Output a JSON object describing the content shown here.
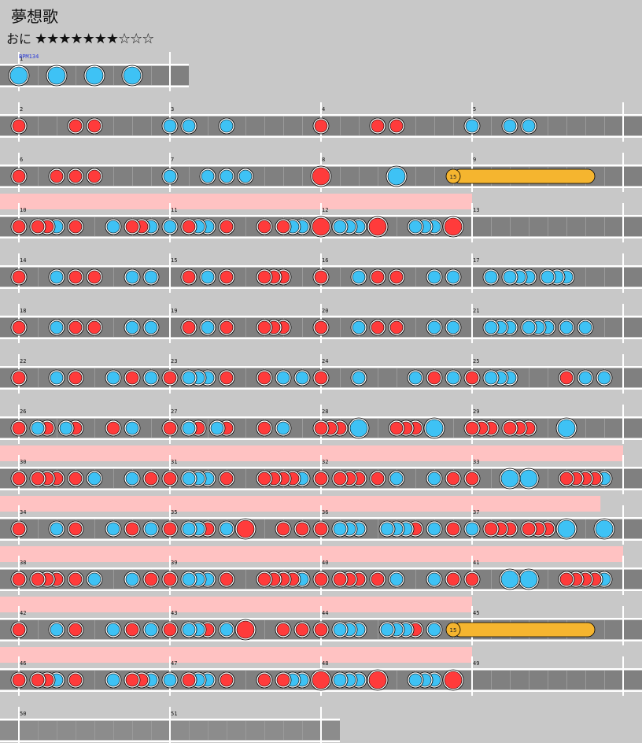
{
  "title": "夢想歌",
  "difficulty": {
    "label": "おに",
    "stars": "★★★★★★★☆☆☆"
  },
  "bpm": "BPM134",
  "colors": {
    "don": "#ff3b3b",
    "ka": "#3ec2f5",
    "drumroll": "#f5b52f",
    "gogo": "#ffc2c2",
    "lane": "#808080"
  },
  "chart_data": {
    "type": "table",
    "measures_per_row": 4,
    "rows": [
      {
        "start": 1,
        "measures": 1,
        "gogo": 0,
        "notes": [
          [
            "K",
            0
          ],
          [
            "K",
            2
          ],
          [
            "K",
            4
          ],
          [
            "K",
            6
          ]
        ]
      },
      {
        "start": 2,
        "measures": 4,
        "gogo": 0,
        "notes": [
          [
            "d",
            0
          ],
          [
            "d",
            3
          ],
          [
            "d",
            4
          ],
          [
            "k",
            8
          ],
          [
            "k",
            9
          ],
          [
            "k",
            11
          ],
          [
            "d",
            16
          ],
          [
            "d",
            19
          ],
          [
            "d",
            20
          ],
          [
            "k",
            24
          ],
          [
            "k",
            26
          ],
          [
            "k",
            27
          ]
        ]
      },
      {
        "start": 6,
        "measures": 4,
        "gogo": 0,
        "notes": [
          [
            "d",
            0
          ],
          [
            "d",
            2
          ],
          [
            "d",
            3
          ],
          [
            "d",
            4
          ],
          [
            "k",
            8
          ],
          [
            "k",
            10
          ],
          [
            "k",
            11
          ],
          [
            "k",
            12
          ],
          [
            "D",
            16
          ],
          [
            "K",
            20
          ],
          [
            "R",
            23,
            30.5,
            "15"
          ]
        ]
      },
      {
        "start": 10,
        "measures": 4,
        "gogo": 3,
        "notes": [
          [
            "d",
            0
          ],
          [
            "d",
            1
          ],
          [
            "d",
            1.5
          ],
          [
            "k",
            2
          ],
          [
            "d",
            3
          ],
          [
            "k",
            5
          ],
          [
            "d",
            6
          ],
          [
            "d",
            6.5
          ],
          [
            "k",
            7
          ],
          [
            "k",
            8
          ],
          [
            "d",
            9
          ],
          [
            "k",
            9.5
          ],
          [
            "k",
            10
          ],
          [
            "d",
            11
          ],
          [
            "d",
            13
          ],
          [
            "d",
            14
          ],
          [
            "k",
            14.5
          ],
          [
            "k",
            15
          ],
          [
            "D",
            16
          ],
          [
            "k",
            17
          ],
          [
            "k",
            17.5
          ],
          [
            "k",
            18
          ],
          [
            "D",
            19
          ],
          [
            "k",
            21
          ],
          [
            "k",
            21.5
          ],
          [
            "k",
            22
          ],
          [
            "D",
            23
          ]
        ]
      },
      {
        "start": 14,
        "measures": 4,
        "gogo": 0,
        "notes": [
          [
            "d",
            0
          ],
          [
            "k",
            2
          ],
          [
            "d",
            3
          ],
          [
            "d",
            4
          ],
          [
            "k",
            6
          ],
          [
            "k",
            7
          ],
          [
            "d",
            9
          ],
          [
            "k",
            10
          ],
          [
            "d",
            11
          ],
          [
            "d",
            13
          ],
          [
            "d",
            13.5
          ],
          [
            "d",
            14
          ],
          [
            "d",
            16
          ],
          [
            "k",
            18
          ],
          [
            "d",
            19
          ],
          [
            "d",
            20
          ],
          [
            "k",
            22
          ],
          [
            "k",
            23
          ],
          [
            "k",
            25
          ],
          [
            "k",
            26
          ],
          [
            "k",
            26.5
          ],
          [
            "k",
            27
          ],
          [
            "k",
            28
          ],
          [
            "k",
            28.5
          ],
          [
            "k",
            29
          ]
        ]
      },
      {
        "start": 18,
        "measures": 4,
        "gogo": 0,
        "notes": [
          [
            "d",
            0
          ],
          [
            "k",
            2
          ],
          [
            "d",
            3
          ],
          [
            "d",
            4
          ],
          [
            "k",
            6
          ],
          [
            "k",
            7
          ],
          [
            "d",
            9
          ],
          [
            "k",
            10
          ],
          [
            "d",
            11
          ],
          [
            "d",
            13
          ],
          [
            "d",
            13.5
          ],
          [
            "d",
            14
          ],
          [
            "d",
            16
          ],
          [
            "k",
            18
          ],
          [
            "d",
            19
          ],
          [
            "d",
            20
          ],
          [
            "k",
            22
          ],
          [
            "k",
            23
          ],
          [
            "k",
            25
          ],
          [
            "k",
            25.5
          ],
          [
            "k",
            26
          ],
          [
            "k",
            27
          ],
          [
            "k",
            27.5
          ],
          [
            "k",
            28
          ],
          [
            "k",
            29
          ],
          [
            "k",
            30
          ]
        ]
      },
      {
        "start": 22,
        "measures": 4,
        "gogo": 0,
        "notes": [
          [
            "d",
            0
          ],
          [
            "k",
            2
          ],
          [
            "d",
            3
          ],
          [
            "k",
            5
          ],
          [
            "d",
            6
          ],
          [
            "k",
            7
          ],
          [
            "d",
            8
          ],
          [
            "k",
            9
          ],
          [
            "k",
            9.5
          ],
          [
            "k",
            10
          ],
          [
            "d",
            11
          ],
          [
            "d",
            13
          ],
          [
            "k",
            14
          ],
          [
            "k",
            15
          ],
          [
            "d",
            16
          ],
          [
            "k",
            18
          ],
          [
            "k",
            21
          ],
          [
            "d",
            22
          ],
          [
            "k",
            23
          ],
          [
            "d",
            24
          ],
          [
            "k",
            25
          ],
          [
            "k",
            25.5
          ],
          [
            "k",
            26
          ],
          [
            "d",
            29
          ],
          [
            "k",
            30
          ],
          [
            "k",
            31
          ]
        ]
      },
      {
        "start": 26,
        "measures": 4,
        "gogo": 0,
        "notes": [
          [
            "d",
            0
          ],
          [
            "k",
            1
          ],
          [
            "d",
            1.5
          ],
          [
            "k",
            2.5
          ],
          [
            "d",
            3
          ],
          [
            "d",
            5
          ],
          [
            "k",
            6
          ],
          [
            "d",
            8
          ],
          [
            "k",
            9
          ],
          [
            "d",
            9.5
          ],
          [
            "k",
            10.5
          ],
          [
            "d",
            11
          ],
          [
            "d",
            13
          ],
          [
            "k",
            14
          ],
          [
            "d",
            16
          ],
          [
            "d",
            16.5
          ],
          [
            "d",
            17
          ],
          [
            "K",
            18
          ],
          [
            "d",
            20
          ],
          [
            "d",
            20.5
          ],
          [
            "d",
            21
          ],
          [
            "K",
            22
          ],
          [
            "d",
            24
          ],
          [
            "d",
            24.5
          ],
          [
            "d",
            25
          ],
          [
            "d",
            26
          ],
          [
            "d",
            26.5
          ],
          [
            "d",
            27
          ],
          [
            "K",
            29
          ]
        ]
      },
      {
        "start": 30,
        "measures": 4,
        "gogo": 4,
        "notes": [
          [
            "d",
            0
          ],
          [
            "d",
            1
          ],
          [
            "d",
            1.5
          ],
          [
            "d",
            2
          ],
          [
            "d",
            3
          ],
          [
            "k",
            4
          ],
          [
            "k",
            6
          ],
          [
            "d",
            7
          ],
          [
            "d",
            8
          ],
          [
            "k",
            9
          ],
          [
            "k",
            9.5
          ],
          [
            "k",
            10
          ],
          [
            "d",
            11
          ],
          [
            "d",
            13
          ],
          [
            "d",
            13.5
          ],
          [
            "d",
            14
          ],
          [
            "d",
            14.5
          ],
          [
            "k",
            15
          ],
          [
            "d",
            16
          ],
          [
            "d",
            17
          ],
          [
            "d",
            17.5
          ],
          [
            "d",
            18
          ],
          [
            "d",
            19
          ],
          [
            "k",
            20
          ],
          [
            "k",
            22
          ],
          [
            "d",
            23
          ],
          [
            "d",
            24
          ],
          [
            "K",
            26
          ],
          [
            "K",
            27
          ],
          [
            "d",
            29
          ],
          [
            "d",
            29.5
          ],
          [
            "d",
            30
          ],
          [
            "d",
            30.5
          ],
          [
            "k",
            31
          ]
        ]
      },
      {
        "start": 34,
        "measures": 4,
        "gogo": 3.85,
        "notes": [
          [
            "d",
            0
          ],
          [
            "k",
            2
          ],
          [
            "d",
            3
          ],
          [
            "k",
            5
          ],
          [
            "d",
            6
          ],
          [
            "k",
            7
          ],
          [
            "d",
            8
          ],
          [
            "k",
            9
          ],
          [
            "k",
            9.5
          ],
          [
            "d",
            10
          ],
          [
            "k",
            11
          ],
          [
            "D",
            12
          ],
          [
            "d",
            14
          ],
          [
            "d",
            15
          ],
          [
            "d",
            16
          ],
          [
            "k",
            17
          ],
          [
            "k",
            17.5
          ],
          [
            "k",
            18
          ],
          [
            "k",
            19.5
          ],
          [
            "k",
            20
          ],
          [
            "k",
            20.5
          ],
          [
            "d",
            21
          ],
          [
            "k",
            22
          ],
          [
            "d",
            23
          ],
          [
            "k",
            24
          ],
          [
            "d",
            25
          ],
          [
            "d",
            25.5
          ],
          [
            "d",
            26
          ],
          [
            "d",
            27
          ],
          [
            "d",
            27.5
          ],
          [
            "d",
            28
          ],
          [
            "K",
            29
          ],
          [
            "K",
            31
          ]
        ]
      },
      {
        "start": 38,
        "measures": 4,
        "gogo": 4,
        "notes": [
          [
            "d",
            0
          ],
          [
            "d",
            1
          ],
          [
            "d",
            1.5
          ],
          [
            "d",
            2
          ],
          [
            "d",
            3
          ],
          [
            "k",
            4
          ],
          [
            "k",
            6
          ],
          [
            "d",
            7
          ],
          [
            "d",
            8
          ],
          [
            "k",
            9
          ],
          [
            "k",
            9.5
          ],
          [
            "k",
            10
          ],
          [
            "d",
            11
          ],
          [
            "d",
            13
          ],
          [
            "d",
            13.5
          ],
          [
            "d",
            14
          ],
          [
            "d",
            14.5
          ],
          [
            "k",
            15
          ],
          [
            "d",
            16
          ],
          [
            "d",
            17
          ],
          [
            "d",
            17.5
          ],
          [
            "d",
            18
          ],
          [
            "d",
            19
          ],
          [
            "k",
            20
          ],
          [
            "k",
            22
          ],
          [
            "d",
            23
          ],
          [
            "d",
            24
          ],
          [
            "K",
            26
          ],
          [
            "K",
            27
          ],
          [
            "d",
            29
          ],
          [
            "d",
            29.5
          ],
          [
            "d",
            30
          ],
          [
            "d",
            30.5
          ],
          [
            "k",
            31
          ]
        ]
      },
      {
        "start": 42,
        "measures": 4,
        "gogo": 3,
        "notes": [
          [
            "d",
            0
          ],
          [
            "k",
            2
          ],
          [
            "d",
            3
          ],
          [
            "k",
            5
          ],
          [
            "d",
            6
          ],
          [
            "k",
            7
          ],
          [
            "d",
            8
          ],
          [
            "k",
            9
          ],
          [
            "k",
            9.5
          ],
          [
            "d",
            10
          ],
          [
            "k",
            11
          ],
          [
            "D",
            12
          ],
          [
            "d",
            14
          ],
          [
            "d",
            15
          ],
          [
            "d",
            16
          ],
          [
            "k",
            17
          ],
          [
            "k",
            17.5
          ],
          [
            "k",
            18
          ],
          [
            "k",
            19.5
          ],
          [
            "k",
            20
          ],
          [
            "k",
            20.5
          ],
          [
            "d",
            21
          ],
          [
            "k",
            22
          ],
          [
            "R",
            23,
            30.5,
            "15"
          ]
        ]
      },
      {
        "start": 46,
        "measures": 4,
        "gogo": 3,
        "notes": [
          [
            "d",
            0
          ],
          [
            "d",
            1
          ],
          [
            "d",
            1.5
          ],
          [
            "k",
            2
          ],
          [
            "d",
            3
          ],
          [
            "k",
            5
          ],
          [
            "d",
            6
          ],
          [
            "d",
            6.5
          ],
          [
            "k",
            7
          ],
          [
            "k",
            8
          ],
          [
            "d",
            9
          ],
          [
            "k",
            9.5
          ],
          [
            "k",
            10
          ],
          [
            "d",
            11
          ],
          [
            "d",
            13
          ],
          [
            "d",
            14
          ],
          [
            "k",
            14.5
          ],
          [
            "k",
            15
          ],
          [
            "D",
            16
          ],
          [
            "k",
            17
          ],
          [
            "k",
            17.5
          ],
          [
            "k",
            18
          ],
          [
            "D",
            19
          ],
          [
            "k",
            21
          ],
          [
            "k",
            21.5
          ],
          [
            "k",
            22
          ],
          [
            "D",
            23
          ]
        ]
      },
      {
        "start": 50,
        "measures": 2,
        "gogo": 0,
        "bare": true,
        "notes": []
      }
    ]
  }
}
